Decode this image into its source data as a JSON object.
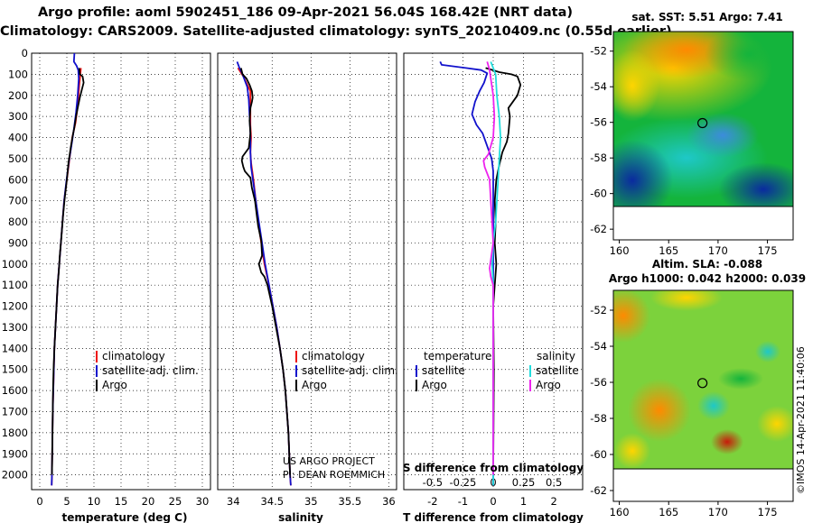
{
  "titles": {
    "line1": "Argo profile: aoml 5902451_186 09-Apr-2021 56.04S 168.42E (NRT data)",
    "line2": "Climatology: CARS2009. Satellite-adjusted climatology: synTS_20210409.nc (0.55d earlier)"
  },
  "depth_axis": {
    "ticks": [
      0,
      100,
      200,
      300,
      400,
      500,
      600,
      700,
      800,
      900,
      1000,
      1100,
      1200,
      1300,
      1400,
      1500,
      1600,
      1700,
      1800,
      1900,
      2000
    ],
    "range": [
      0,
      2070
    ]
  },
  "chart_data": [
    {
      "type": "line",
      "name": "temperature-profile",
      "xlabel": "temperature (deg C)",
      "xticks": [
        0,
        5,
        10,
        15,
        20,
        25,
        30
      ],
      "xlim": [
        -1.5,
        31.5
      ],
      "legend": [
        "climatology",
        "satellite-adj. clim.",
        "Argo"
      ],
      "series": [
        {
          "name": "climatology",
          "color": "#ee1111",
          "points": [
            [
              7.6,
              70
            ],
            [
              7.3,
              150
            ],
            [
              7.0,
              250
            ],
            [
              6.6,
              330
            ],
            [
              6.0,
              400
            ],
            [
              5.5,
              500
            ],
            [
              5.0,
              600
            ],
            [
              4.5,
              700
            ],
            [
              4.2,
              800
            ],
            [
              3.9,
              900
            ],
            [
              3.6,
              1000
            ],
            [
              3.3,
              1100
            ],
            [
              3.1,
              1200
            ],
            [
              2.9,
              1300
            ],
            [
              2.7,
              1400
            ],
            [
              2.6,
              1500
            ],
            [
              2.5,
              1600
            ],
            [
              2.4,
              1700
            ],
            [
              2.35,
              1800
            ],
            [
              2.3,
              1900
            ],
            [
              2.25,
              2000
            ],
            [
              2.2,
              2050
            ]
          ]
        },
        {
          "name": "satellite-adj. clim.",
          "color": "#1111cc",
          "points": [
            [
              6.4,
              0
            ],
            [
              6.3,
              40
            ],
            [
              6.8,
              60
            ],
            [
              7.1,
              80
            ],
            [
              7.2,
              120
            ],
            [
              7.0,
              200
            ],
            [
              6.7,
              280
            ],
            [
              6.3,
              360
            ],
            [
              5.9,
              430
            ],
            [
              5.4,
              510
            ],
            [
              4.9,
              610
            ],
            [
              4.5,
              700
            ],
            [
              4.2,
              800
            ],
            [
              3.9,
              900
            ],
            [
              3.6,
              1000
            ],
            [
              3.3,
              1100
            ],
            [
              3.1,
              1200
            ],
            [
              2.9,
              1300
            ],
            [
              2.7,
              1400
            ],
            [
              2.6,
              1500
            ],
            [
              2.5,
              1600
            ],
            [
              2.4,
              1700
            ],
            [
              2.35,
              1800
            ],
            [
              2.3,
              1900
            ],
            [
              2.25,
              2000
            ],
            [
              2.2,
              2050
            ]
          ]
        },
        {
          "name": "Argo",
          "color": "#000000",
          "points": [
            [
              7.3,
              70
            ],
            [
              7.4,
              100
            ],
            [
              7.9,
              110
            ],
            [
              8.1,
              140
            ],
            [
              7.8,
              170
            ],
            [
              7.4,
              210
            ],
            [
              7.0,
              260
            ],
            [
              6.7,
              300
            ],
            [
              6.4,
              350
            ],
            [
              6.1,
              390
            ],
            [
              5.7,
              450
            ],
            [
              5.3,
              520
            ],
            [
              5.0,
              600
            ],
            [
              4.6,
              690
            ],
            [
              4.3,
              770
            ],
            [
              4.0,
              870
            ],
            [
              3.7,
              960
            ],
            [
              3.5,
              1040
            ],
            [
              3.3,
              1100
            ],
            [
              3.1,
              1200
            ],
            [
              2.9,
              1300
            ],
            [
              2.7,
              1400
            ],
            [
              2.55,
              1500
            ],
            [
              2.45,
              1600
            ],
            [
              2.4,
              1700
            ],
            [
              2.35,
              1800
            ],
            [
              2.3,
              1900
            ],
            [
              2.25,
              2000
            ]
          ]
        }
      ]
    },
    {
      "type": "line",
      "name": "salinity-profile",
      "xlabel": "salinity",
      "xticks": [
        34,
        34.5,
        35,
        35.5,
        36
      ],
      "xlim": [
        33.8,
        36.1
      ],
      "legend": [
        "climatology",
        "satellite-adj. clim.",
        "Argo"
      ],
      "credit": [
        "US ARGO PROJECT",
        "PI: DEAN ROEMMICH"
      ],
      "series": [
        {
          "name": "climatology",
          "color": "#ee1111",
          "points": [
            [
              34.06,
              70
            ],
            [
              34.13,
              110
            ],
            [
              34.22,
              180
            ],
            [
              34.22,
              260
            ],
            [
              34.22,
              340
            ],
            [
              34.23,
              400
            ],
            [
              34.22,
              470
            ],
            [
              34.23,
              520
            ],
            [
              34.26,
              600
            ],
            [
              34.29,
              700
            ],
            [
              34.32,
              800
            ],
            [
              34.36,
              900
            ],
            [
              34.4,
              1000
            ],
            [
              34.46,
              1100
            ],
            [
              34.51,
              1200
            ],
            [
              34.56,
              1300
            ],
            [
              34.6,
              1400
            ],
            [
              34.64,
              1500
            ],
            [
              34.67,
              1600
            ],
            [
              34.69,
              1700
            ],
            [
              34.71,
              1800
            ],
            [
              34.72,
              1900
            ],
            [
              34.73,
              2000
            ],
            [
              34.74,
              2050
            ]
          ]
        },
        {
          "name": "satellite-adj. clim.",
          "color": "#1111cc",
          "points": [
            [
              34.05,
              40
            ],
            [
              34.08,
              70
            ],
            [
              34.12,
              100
            ],
            [
              34.18,
              160
            ],
            [
              34.2,
              220
            ],
            [
              34.21,
              300
            ],
            [
              34.22,
              380
            ],
            [
              34.22,
              470
            ],
            [
              34.23,
              540
            ],
            [
              34.26,
              620
            ],
            [
              34.29,
              700
            ],
            [
              34.33,
              800
            ],
            [
              34.37,
              900
            ],
            [
              34.41,
              1000
            ],
            [
              34.46,
              1100
            ],
            [
              34.51,
              1200
            ],
            [
              34.56,
              1300
            ],
            [
              34.6,
              1400
            ],
            [
              34.64,
              1500
            ],
            [
              34.67,
              1600
            ],
            [
              34.69,
              1700
            ],
            [
              34.71,
              1800
            ],
            [
              34.72,
              1900
            ],
            [
              34.73,
              2000
            ],
            [
              34.74,
              2050
            ]
          ]
        },
        {
          "name": "Argo",
          "color": "#000000",
          "points": [
            [
              34.1,
              70
            ],
            [
              34.12,
              100
            ],
            [
              34.17,
              120
            ],
            [
              34.21,
              150
            ],
            [
              34.24,
              180
            ],
            [
              34.25,
              210
            ],
            [
              34.24,
              230
            ],
            [
              34.22,
              260
            ],
            [
              34.21,
              320
            ],
            [
              34.22,
              380
            ],
            [
              34.2,
              450
            ],
            [
              34.12,
              490
            ],
            [
              34.11,
              510
            ],
            [
              34.13,
              540
            ],
            [
              34.15,
              560
            ],
            [
              34.22,
              590
            ],
            [
              34.24,
              640
            ],
            [
              34.28,
              700
            ],
            [
              34.3,
              760
            ],
            [
              34.32,
              820
            ],
            [
              34.36,
              890
            ],
            [
              34.37,
              960
            ],
            [
              34.33,
              1000
            ],
            [
              34.36,
              1040
            ],
            [
              34.4,
              1060
            ],
            [
              34.44,
              1100
            ],
            [
              34.5,
              1200
            ],
            [
              34.55,
              1300
            ],
            [
              34.6,
              1400
            ],
            [
              34.64,
              1500
            ],
            [
              34.67,
              1600
            ],
            [
              34.69,
              1700
            ],
            [
              34.71,
              1800
            ],
            [
              34.72,
              1900
            ],
            [
              34.73,
              2000
            ]
          ]
        }
      ]
    },
    {
      "type": "line",
      "name": "difference-profile",
      "xlabel": "T difference from climatology",
      "xticks_T": [
        -2,
        -1,
        0,
        1,
        2
      ],
      "xlabel_S": "S difference from climatology",
      "xticks_S": [
        -0.5,
        -0.25,
        0,
        0.25,
        0.5
      ],
      "xlim_T": [
        -2.95,
        2.95
      ],
      "xlim_S": [
        -0.737,
        0.737
      ],
      "legend_left_title": "temperature",
      "legend_right_title": "salinity",
      "legend": [
        "satellite",
        "Argo",
        "satellite",
        "Argo"
      ],
      "series": [
        {
          "name": "temperature satellite",
          "color": "#1111cc",
          "unit": "T",
          "points": [
            [
              -1.75,
              40
            ],
            [
              -1.7,
              55
            ],
            [
              -0.9,
              70
            ],
            [
              -0.4,
              80
            ],
            [
              -0.2,
              95
            ],
            [
              -0.3,
              140
            ],
            [
              -0.45,
              180
            ],
            [
              -0.6,
              230
            ],
            [
              -0.7,
              290
            ],
            [
              -0.55,
              340
            ],
            [
              -0.35,
              380
            ],
            [
              -0.2,
              440
            ],
            [
              -0.05,
              500
            ],
            [
              0,
              560
            ],
            [
              0,
              2050
            ]
          ]
        },
        {
          "name": "temperature Argo",
          "color": "#000000",
          "unit": "T",
          "points": [
            [
              -0.25,
              70
            ],
            [
              0.2,
              90
            ],
            [
              0.6,
              100
            ],
            [
              0.8,
              110
            ],
            [
              0.9,
              150
            ],
            [
              0.8,
              200
            ],
            [
              0.65,
              230
            ],
            [
              0.5,
              260
            ],
            [
              0.55,
              300
            ],
            [
              0.5,
              380
            ],
            [
              0.45,
              420
            ],
            [
              0.3,
              470
            ],
            [
              0.2,
              530
            ],
            [
              0.1,
              600
            ],
            [
              0.05,
              700
            ],
            [
              0.08,
              800
            ],
            [
              0.05,
              900
            ],
            [
              0.1,
              1000
            ],
            [
              0.05,
              1100
            ],
            [
              0.0,
              1200
            ],
            [
              0.02,
              1500
            ],
            [
              0,
              2000
            ]
          ]
        },
        {
          "name": "salinity satellite",
          "color": "#22dddd",
          "unit": "S",
          "points": [
            [
              -0.02,
              40
            ],
            [
              0.0,
              70
            ],
            [
              0.02,
              100
            ],
            [
              0.03,
              200
            ],
            [
              0.05,
              300
            ],
            [
              0.06,
              400
            ],
            [
              0.05,
              500
            ],
            [
              0.04,
              600
            ],
            [
              0.03,
              700
            ],
            [
              0.02,
              800
            ],
            [
              0.0,
              900
            ],
            [
              -0.01,
              1000
            ],
            [
              0,
              1100
            ],
            [
              0,
              2050
            ]
          ]
        },
        {
          "name": "salinity Argo",
          "color": "#ee22ee",
          "unit": "S",
          "points": [
            [
              -0.05,
              40
            ],
            [
              -0.03,
              80
            ],
            [
              -0.02,
              120
            ],
            [
              0.0,
              200
            ],
            [
              0.01,
              300
            ],
            [
              0.0,
              400
            ],
            [
              -0.04,
              480
            ],
            [
              -0.08,
              510
            ],
            [
              -0.07,
              540
            ],
            [
              -0.03,
              600
            ],
            [
              -0.02,
              700
            ],
            [
              -0.01,
              800
            ],
            [
              0.0,
              900
            ],
            [
              -0.03,
              1020
            ],
            [
              -0.02,
              1060
            ],
            [
              0.0,
              1100
            ],
            [
              0.0,
              1300
            ],
            [
              0.0,
              2000
            ]
          ]
        }
      ]
    },
    {
      "type": "heatmap",
      "name": "sst-map",
      "title": "sat. SST: 5.51 Argo: 7.41",
      "xticks": [
        160,
        165,
        170,
        175
      ],
      "yticks": [
        -52,
        -54,
        -56,
        -58,
        -60,
        -62
      ],
      "xlim": [
        159.4,
        177.6
      ],
      "ylim": [
        -50.9,
        -62.6
      ],
      "data_ylim": [
        -50.9,
        -60
      ],
      "argo_position": [
        168.42,
        -56.04
      ]
    },
    {
      "type": "heatmap",
      "name": "sla-map",
      "title_line1": "Altim. SLA: -0.088",
      "title_line2": "Argo h1000: 0.042 h2000: 0.039",
      "xticks": [
        160,
        165,
        170,
        175
      ],
      "yticks": [
        -52,
        -54,
        -56,
        -58,
        -60,
        -62
      ],
      "xlim": [
        159.4,
        177.6
      ],
      "ylim": [
        -50.9,
        -62.6
      ],
      "data_ylim": [
        -50.9,
        -60
      ],
      "argo_position": [
        168.42,
        -56.04
      ],
      "watermark": "©IMOS 14-Apr-2021 11:40:06"
    }
  ]
}
